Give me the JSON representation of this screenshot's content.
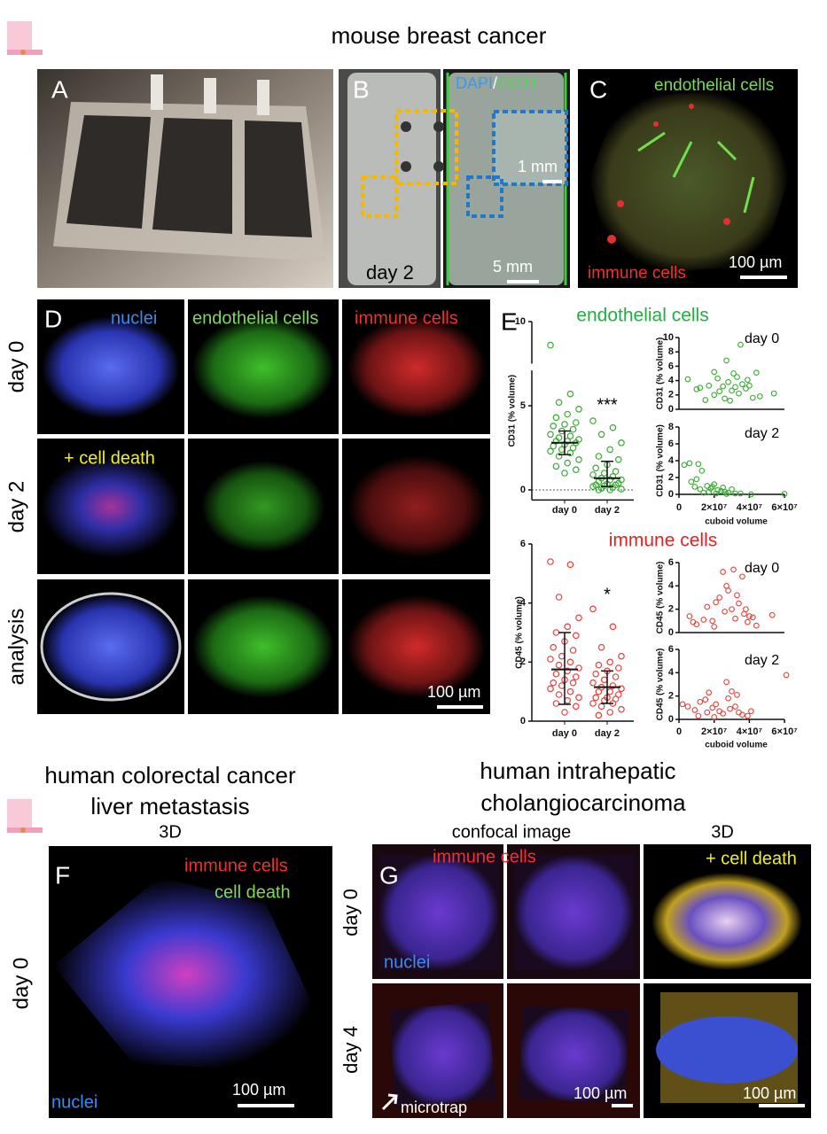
{
  "header": {
    "title": "mouse breast cancer"
  },
  "panels": {
    "A": {
      "label": "A"
    },
    "B": {
      "label": "B",
      "stain_1": "DAPI",
      "separator": "/",
      "stain_2": "CD31",
      "scale_inset": "1 mm",
      "day": "day 2",
      "scale": "5 mm"
    },
    "C": {
      "label": "C",
      "green": "endothelial cells",
      "red": "immune cells",
      "scale": "100 µm"
    },
    "D": {
      "label": "D",
      "columns": [
        "nuclei",
        "endothelial cells",
        "immune cells"
      ],
      "rows": [
        "day 0",
        "day 2",
        "analysis"
      ],
      "overlay": "+ cell death",
      "scale": "100 µm"
    },
    "E": {
      "label": "E",
      "title_top": "endothelial cells",
      "title_bottom": "immune cells"
    },
    "F": {
      "heading": [
        "human colorectal cancer",
        "liver metastasis"
      ],
      "subheading": "3D",
      "label": "F",
      "red": "immune cells",
      "green": "cell death",
      "blue": "nuclei",
      "row": "day 0",
      "scale": "100 µm"
    },
    "G": {
      "heading": [
        "human intrahepatic",
        "cholangiocarcinoma"
      ],
      "columns": [
        "confocal image",
        "3D"
      ],
      "label": "G",
      "red": "immune cells",
      "yellow": "+ cell death",
      "blue": "nuclei",
      "rows": [
        "day 0",
        "day 4"
      ],
      "pointer": "microtrap",
      "scales": [
        "100 µm",
        "100 µm"
      ]
    }
  },
  "chart_data": [
    {
      "type": "dotplot",
      "ylabel": "CD31 (% volume)",
      "categories": [
        "day 0",
        "day 2"
      ],
      "color": "#3aa935",
      "values": [
        [
          8.6,
          5.7,
          5.2,
          4.8,
          4.5,
          4.3,
          4.0,
          3.9,
          3.8,
          3.6,
          3.5,
          3.3,
          3.2,
          3.1,
          3.0,
          2.9,
          2.9,
          2.8,
          2.7,
          2.6,
          2.5,
          2.4,
          2.3,
          2.2,
          2.0,
          1.8,
          1.6,
          1.4,
          1.2,
          1.0
        ],
        [
          4.1,
          3.7,
          3.3,
          2.8,
          2.4,
          2.0,
          1.8,
          1.5,
          1.3,
          1.1,
          1.0,
          0.9,
          0.8,
          0.7,
          0.6,
          0.6,
          0.5,
          0.4,
          0.35,
          0.3,
          0.3,
          0.25,
          0.2,
          0.15,
          0.1,
          0.05,
          0,
          0
        ]
      ],
      "center": [
        2.8,
        0.7
      ],
      "error_low": [
        2.1,
        0.2
      ],
      "error_high": [
        3.5,
        1.7
      ],
      "ylim": [
        -0.6,
        10
      ],
      "yticks": [
        0,
        5,
        10
      ],
      "axis_break": [
        7.1,
        7.5
      ],
      "reference_line": 0,
      "significance": "***"
    },
    {
      "type": "scatter",
      "annotation": "day 0",
      "ylabel": "CD31 (% volume)",
      "color": "#3aa935",
      "x": [
        5000000.0,
        12000000.0,
        15000000.0,
        17000000.0,
        20000000.0,
        20000000.0,
        22000000.0,
        23000000.0,
        25000000.0,
        26000000.0,
        27000000.0,
        28000000.0,
        30000000.0,
        31000000.0,
        32000000.0,
        34000000.0,
        35000000.0,
        36000000.0,
        38000000.0,
        39000000.0,
        40000000.0,
        42000000.0,
        44000000.0,
        46000000.0,
        54000000.0,
        33000000.0,
        10000000.0,
        29000000.0
      ],
      "y": [
        4.2,
        3.0,
        1.3,
        3.3,
        2.0,
        5.2,
        4.3,
        2.5,
        3.2,
        1.5,
        6.8,
        3.8,
        2.6,
        5.0,
        3.1,
        2.2,
        9.0,
        3.5,
        2.9,
        4.1,
        3.3,
        1.6,
        5.1,
        1.8,
        2.2,
        4.5,
        2.8,
        1.2
      ],
      "xlim": [
        0,
        65000000.0
      ],
      "ylim": [
        0,
        10
      ],
      "yticks": [
        0,
        2,
        4,
        6,
        8,
        10
      ]
    },
    {
      "type": "scatter",
      "annotation": "day 2",
      "ylabel": "CD31 (% volume)",
      "xlabel": "cuboid volume",
      "color": "#3aa935",
      "x": [
        3000000.0,
        6000000.0,
        11000000.0,
        13000000.0,
        10000000.0,
        7000000.0,
        16000000.0,
        18000000.0,
        20000000.0,
        22000000.0,
        24000000.0,
        26000000.0,
        28000000.0,
        30000000.0,
        32000000.0,
        14000000.0,
        21000000.0,
        19000000.0,
        25000000.0,
        35000000.0,
        41000000.0,
        60000000.0,
        12000000.0,
        27000000.0,
        9000000.0,
        17000000.0
      ],
      "y": [
        3.5,
        3.7,
        3.6,
        2.8,
        1.8,
        1.5,
        1.0,
        0.7,
        1.2,
        0.5,
        0.4,
        0.3,
        0.2,
        0.6,
        0.1,
        0.2,
        0.1,
        0.9,
        0.8,
        0.1,
        0,
        0.05,
        0.6,
        0.05,
        0.9,
        0.3
      ],
      "xlim": [
        0,
        65000000.0
      ],
      "xticks": [
        0,
        {
          "value": 20000000.0,
          "label": "2×10⁷"
        },
        {
          "value": 40000000.0,
          "label": "4×10⁷"
        },
        {
          "value": 60000000.0,
          "label": "6×10⁷"
        }
      ],
      "ylim": [
        0,
        8
      ],
      "yticks": [
        0,
        2,
        4,
        6,
        8
      ]
    },
    {
      "type": "dotplot",
      "ylabel": "CD45 (% volume)",
      "categories": [
        "day 0",
        "day 2"
      ],
      "color": "#e8413a",
      "values": [
        [
          5.4,
          5.3,
          4.2,
          3.5,
          3.2,
          3.0,
          2.9,
          2.7,
          2.5,
          2.4,
          2.2,
          2.1,
          2.0,
          1.9,
          1.8,
          1.7,
          1.6,
          1.5,
          1.4,
          1.3,
          1.3,
          1.2,
          1.1,
          1.0,
          0.9,
          0.8,
          0.7,
          0.6,
          0.5,
          0.3
        ],
        [
          3.8,
          3.2,
          2.5,
          2.2,
          2.0,
          1.9,
          1.8,
          1.7,
          1.6,
          1.5,
          1.4,
          1.3,
          1.2,
          1.15,
          1.1,
          1.0,
          1.0,
          0.9,
          0.8,
          0.8,
          0.75,
          0.7,
          0.6,
          0.6,
          0.5,
          0.4,
          0.3,
          0.2
        ]
      ],
      "center": [
        1.75,
        1.15
      ],
      "error_low": [
        0.57,
        0.6
      ],
      "error_high": [
        3.0,
        1.7
      ],
      "ylim": [
        0,
        6
      ],
      "yticks": [
        0,
        2,
        4,
        6
      ],
      "significance": "*"
    },
    {
      "type": "scatter",
      "annotation": "day 0",
      "ylabel": "CD45 (% volume)",
      "color": "#e8413a",
      "x": [
        6000000.0,
        8000000.0,
        10000000.0,
        16000000.0,
        19000000.0,
        21000000.0,
        23000000.0,
        25000000.0,
        26000000.0,
        28000000.0,
        30000000.0,
        31000000.0,
        32000000.0,
        34000000.0,
        36000000.0,
        37000000.0,
        39000000.0,
        40000000.0,
        42000000.0,
        44000000.0,
        53000000.0,
        20000000.0,
        27000000.0,
        33000000.0,
        14000000.0,
        38000000.0
      ],
      "y": [
        1.4,
        0.9,
        0.7,
        2.2,
        1.0,
        2.6,
        3.0,
        5.2,
        1.8,
        3.6,
        2.0,
        5.4,
        1.2,
        2.5,
        4.8,
        1.6,
        0.9,
        1.4,
        1.3,
        0.6,
        1.5,
        0.5,
        4.0,
        3.2,
        1.1,
        2.0
      ],
      "xlim": [
        0,
        65000000.0
      ],
      "ylim": [
        0,
        6
      ],
      "yticks": [
        0,
        2,
        4,
        6
      ]
    },
    {
      "type": "scatter",
      "annotation": "day 2",
      "ylabel": "CD45 (% volume)",
      "xlabel": "cuboid volume",
      "color": "#e8413a",
      "x": [
        2000000.0,
        5000000.0,
        9000000.0,
        12000000.0,
        15000000.0,
        17000000.0,
        19000000.0,
        21000000.0,
        23000000.0,
        25000000.0,
        27000000.0,
        28000000.0,
        30000000.0,
        32000000.0,
        34000000.0,
        36000000.0,
        39000000.0,
        41000000.0,
        11000000.0,
        20000000.0,
        29000000.0,
        61000000.0,
        33000000.0,
        16000000.0
      ],
      "y": [
        1.3,
        1.1,
        0.8,
        1.5,
        1.7,
        2.3,
        1.0,
        1.3,
        0.7,
        0.5,
        3.2,
        1.8,
        2.4,
        1.1,
        0.6,
        0.4,
        0.3,
        0.7,
        0.3,
        0.2,
        0.9,
        3.8,
        2.1,
        0.6
      ],
      "xlim": [
        0,
        65000000.0
      ],
      "xticks": [
        0,
        {
          "value": 20000000.0,
          "label": "2×10⁷"
        },
        {
          "value": 40000000.0,
          "label": "4×10⁷"
        },
        {
          "value": 60000000.0,
          "label": "6×10⁷"
        }
      ],
      "ylim": [
        0,
        6
      ],
      "yticks": [
        0,
        2,
        4,
        6
      ]
    }
  ]
}
